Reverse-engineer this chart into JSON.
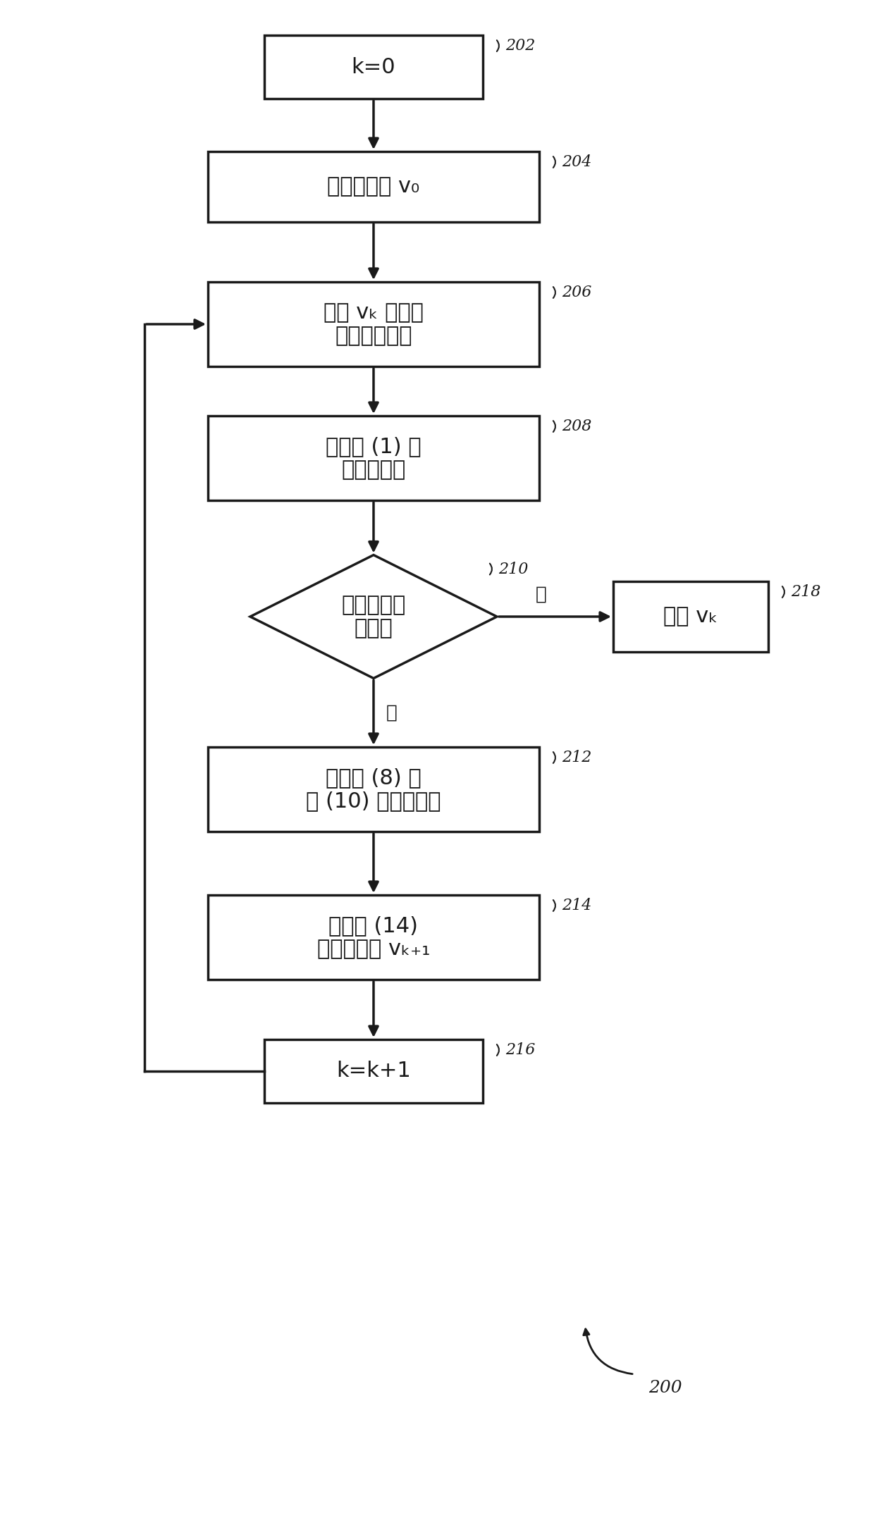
{
  "bg_color": "#ffffff",
  "box_color": "#ffffff",
  "box_edge_color": "#1a1a1a",
  "arrow_color": "#1a1a1a",
  "text_color": "#1a1a1a",
  "fig_width": 12.4,
  "fig_height": 21.81,
  "label_202": "k=0",
  "label_204": "初始化速度 v₀",
  "label_206_line1": "使用 vₖ 来计算",
  "label_206_line2": "合成轨迹数据",
  "label_208_line1": "计算式 (1) 中",
  "label_208_line2": "的目标函数",
  "label_210_line1": "目标函数＜",
  "label_210_line2": "阈値？",
  "label_218": "输出 vₖ",
  "label_212_line1": "使用式 (8) 和",
  "label_212_line2": "式 (10) 来计算梯度",
  "label_214_line1": "使用式 (14)",
  "label_214_line2": "来确定速度 vₖ₊₁",
  "label_216": "k=k+1",
  "yes_label": "是",
  "no_label": "否",
  "tag_200": "200",
  "tag_202": "202",
  "tag_204": "204",
  "tag_206": "206",
  "tag_208": "208",
  "tag_210": "210",
  "tag_212": "212",
  "tag_214": "214",
  "tag_216": "216",
  "tag_218": "218"
}
